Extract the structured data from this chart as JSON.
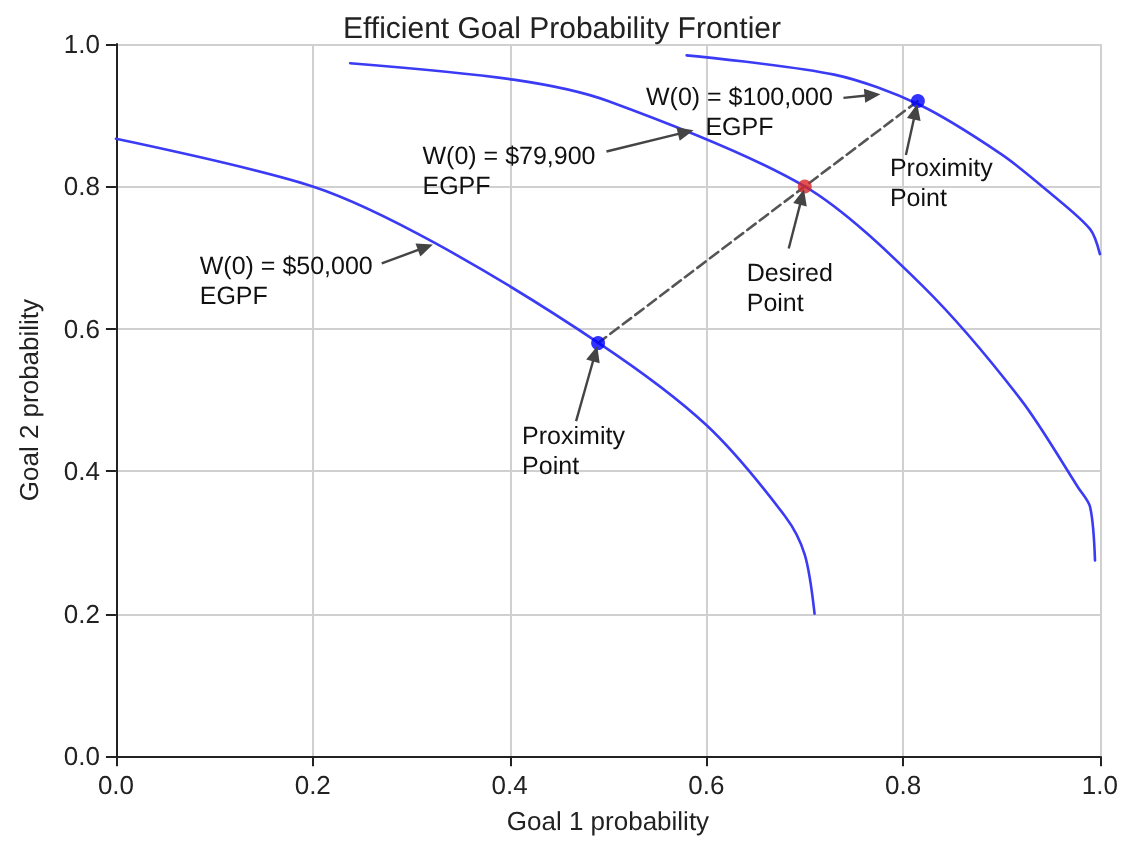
{
  "chart_data": {
    "type": "line",
    "title": "Efficient Goal Probability Frontier",
    "xlabel": "Goal 1 probability",
    "ylabel": "Goal 2 probability",
    "xlim": [
      0,
      1
    ],
    "ylim": [
      0,
      1
    ],
    "xticks": [
      {
        "value": 0,
        "label": "0.0"
      },
      0.2,
      0.4,
      0.6,
      0.8,
      {
        "value": 1,
        "label": "1.0"
      }
    ],
    "yticks": [
      {
        "value": 0,
        "label": "0.0"
      },
      0.2,
      0.4,
      0.6,
      0.8,
      {
        "value": 1,
        "label": "1.0"
      }
    ],
    "grid": true,
    "marker": "none",
    "line_style": "solid",
    "series": [
      {
        "color": "#3b3bf5",
        "x": [
          0,
          0.2,
          0.325,
          0.493,
          0.6,
          0.68,
          0.7,
          0.71
        ],
        "values": [
          0.867,
          0.8,
          0.72,
          0.578,
          0.465,
          0.337,
          0.283,
          0.2
        ]
      },
      {
        "color": "#3b3bf5",
        "x": [
          0.238,
          0.404,
          0.5,
          0.7,
          0.82,
          0.92,
          0.978,
          0.99,
          0.995
        ],
        "values": [
          0.973,
          0.95,
          0.92,
          0.8,
          0.66,
          0.5,
          0.377,
          0.35,
          0.275
        ]
      },
      {
        "color": "#3b3bf5",
        "x": [
          0.58,
          0.73,
          0.816,
          0.9,
          0.95,
          0.99,
          1.0
        ],
        "values": [
          0.984,
          0.957,
          0.915,
          0.845,
          0.79,
          0.74,
          0.705
        ]
      },
      {
        "type": "line",
        "color": "#555555",
        "line_style": "dashed",
        "x": [
          0.49,
          0.7,
          0.815
        ],
        "values": [
          0.58,
          0.8,
          0.92
        ]
      },
      {
        "type": "scatter",
        "marker": "circle",
        "colors": [
          "#0000ff",
          "#d62728",
          "#0000ff"
        ],
        "x": [
          0.49,
          0.7,
          0.815
        ],
        "values": [
          0.58,
          0.8,
          0.92
        ]
      }
    ],
    "annotations": [
      {
        "text": "W(0) = $50,000\nEGPF",
        "x": 0.325,
        "y": 0.72
      },
      {
        "text": "W(0) = $79,900\nEGPF",
        "x": 0.59,
        "y": 0.88
      },
      {
        "text": "W(0) = $100,000\nEGPF",
        "x": 0.78,
        "y": 0.93
      },
      {
        "text": "Proximity\nPoint",
        "x": 0.49,
        "y": 0.58
      },
      {
        "text": "Desired\nPoint",
        "x": 0.7,
        "y": 0.8
      },
      {
        "text": "Proximity\nPoint",
        "x": 0.815,
        "y": 0.92
      }
    ]
  }
}
